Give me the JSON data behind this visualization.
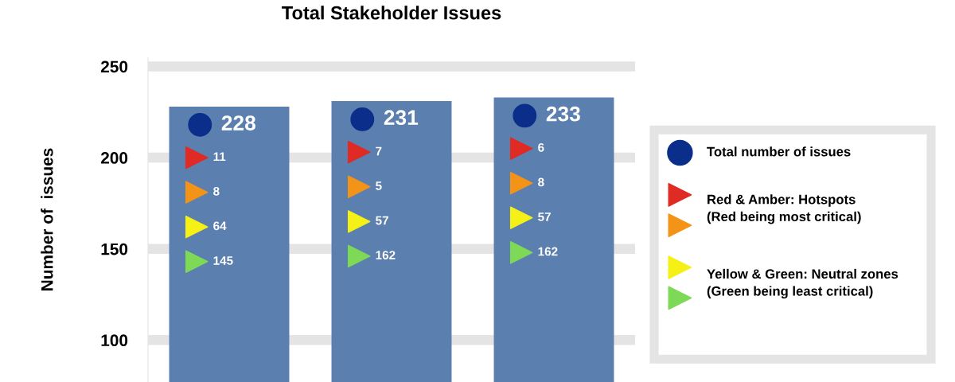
{
  "chart_data": {
    "type": "bar",
    "title": "Total Stakeholder Issues",
    "ylabel": "Number of  issues",
    "categories": [
      null,
      null,
      null
    ],
    "series": [
      {
        "color": "#5b7fae",
        "values": [
          228,
          231,
          233
        ]
      }
    ],
    "data_labels": true,
    "ylim": [
      77,
      255
    ],
    "yticks": [
      100,
      150,
      200,
      250
    ],
    "grid": "y",
    "legend": false,
    "annotations": [
      "11",
      "8",
      "64",
      "145",
      "7",
      "5",
      "57",
      "162",
      "6",
      "8",
      "57",
      "162",
      "Total number of issues",
      "Red & Amber: Hotspots",
      "(Red being most critical)",
      "Yellow & Green: Neutral zones",
      "(Green being least critical)"
    ]
  }
}
